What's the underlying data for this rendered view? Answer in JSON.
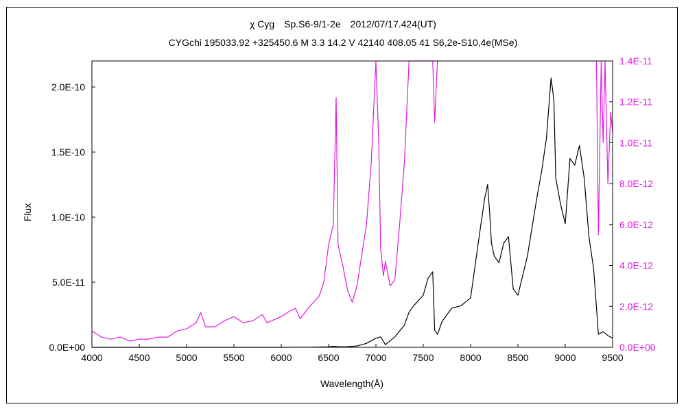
{
  "chart_data": {
    "type": "line",
    "title": "χ Cyg　Sp.S6-9/1-2e　2012/07/17.424(UT)",
    "subtitle": "CYGchi 195033.92 +325450.6 M 3.3 14.2 V 42140 408.05 41 S6,2e-S10,4e(MSe)",
    "xlabel": "Wavelength(Å)",
    "ylabel": "Flux",
    "xlim": [
      4000,
      9500
    ],
    "ylim": [
      0,
      2.2e-10
    ],
    "y2lim": [
      0,
      1.4e-11
    ],
    "x_ticks": [
      "4000",
      "4500",
      "5000",
      "5500",
      "6000",
      "6500",
      "7000",
      "7500",
      "8000",
      "8500",
      "9000",
      "9500"
    ],
    "x_tick_values": [
      4000,
      4500,
      5000,
      5500,
      6000,
      6500,
      7000,
      7500,
      8000,
      8500,
      9000,
      9500
    ],
    "y_ticks": [
      "0.0E+00",
      "5.0E-11",
      "1.0E-10",
      "1.5E-10",
      "2.0E-10"
    ],
    "y_tick_values": [
      0,
      5e-11,
      1e-10,
      1.5e-10,
      2e-10
    ],
    "y2_ticks": [
      "0.0E+00",
      "2.0E-12",
      "4.0E-12",
      "6.0E-12",
      "8.0E-12",
      "1.0E-11",
      "1.2E-11",
      "1.4E-11"
    ],
    "y2_tick_values": [
      0,
      2e-12,
      4e-12,
      6e-12,
      8e-12,
      1e-11,
      1.2e-11,
      1.4e-11
    ],
    "grid": false,
    "series": [
      {
        "axis": "left",
        "color": "#000000",
        "x": [
          4000,
          4500,
          5000,
          5500,
          6000,
          6300,
          6500,
          6550,
          6600,
          6700,
          6800,
          6900,
          7000,
          7050,
          7100,
          7200,
          7300,
          7350,
          7400,
          7500,
          7550,
          7600,
          7620,
          7650,
          7700,
          7800,
          7900,
          8000,
          8100,
          8150,
          8180,
          8200,
          8220,
          8250,
          8300,
          8350,
          8400,
          8450,
          8500,
          8600,
          8700,
          8750,
          8800,
          8850,
          8880,
          8900,
          8950,
          9000,
          9050,
          9100,
          9150,
          9200,
          9250,
          9300,
          9350,
          9400,
          9450,
          9500
        ],
        "y": [
          0,
          0,
          0,
          0,
          0,
          1e-13,
          3e-13,
          8e-13,
          4e-13,
          5e-13,
          1e-12,
          3e-12,
          7e-12,
          8e-12,
          2e-12,
          8e-12,
          1.7e-11,
          2.7e-11,
          3.2e-11,
          4e-11,
          5.3e-11,
          5.8e-11,
          1.3e-11,
          1e-11,
          2e-11,
          3e-11,
          3.2e-11,
          3.8e-11,
          9e-11,
          1.15e-10,
          1.25e-10,
          1.05e-10,
          8e-11,
          7e-11,
          6.5e-11,
          8e-11,
          8.5e-11,
          4.5e-11,
          4e-11,
          7e-11,
          1.15e-10,
          1.35e-10,
          1.6e-10,
          2.07e-10,
          1.9e-10,
          1.3e-10,
          1.1e-10,
          9.5e-11,
          1.45e-10,
          1.4e-10,
          1.55e-10,
          1.3e-10,
          8.5e-11,
          6e-11,
          1e-11,
          1.2e-11,
          9e-12,
          7e-12
        ]
      },
      {
        "axis": "right",
        "color": "#E018E0",
        "x": [
          4000,
          4100,
          4200,
          4300,
          4400,
          4500,
          4600,
          4700,
          4800,
          4900,
          5000,
          5100,
          5150,
          5200,
          5300,
          5400,
          5500,
          5600,
          5700,
          5800,
          5850,
          5900,
          6000,
          6100,
          6150,
          6200,
          6300,
          6400,
          6450,
          6500,
          6550,
          6580,
          6600,
          6650,
          6700,
          6750,
          6800,
          6900,
          6950,
          7000,
          7030,
          7050,
          7080,
          7100,
          7150,
          7200,
          7250,
          7300,
          7350,
          7400,
          7500,
          7550,
          7600,
          7620,
          7650
        ],
        "y": [
          8e-13,
          5e-13,
          4e-13,
          5e-13,
          3e-13,
          4e-13,
          4e-13,
          5e-13,
          5e-13,
          8e-13,
          9e-13,
          1.2e-12,
          1.7e-12,
          1e-12,
          1e-12,
          1.3e-12,
          1.5e-12,
          1.2e-12,
          1.3e-12,
          1.6e-12,
          1.2e-12,
          1.3e-12,
          1.5e-12,
          1.8e-12,
          1.9e-12,
          1.4e-12,
          2e-12,
          2.5e-12,
          3.2e-12,
          5e-12,
          6e-12,
          1.22e-11,
          5e-12,
          4e-12,
          2.8e-12,
          2.2e-12,
          3e-12,
          6e-12,
          9e-12,
          1.4e-11,
          1e-11,
          4.8e-12,
          3.5e-12,
          4.2e-12,
          3e-12,
          3.3e-12,
          6e-12,
          9e-12,
          1.4e-11,
          1.4e-11,
          1.4e-11,
          1.4e-11,
          1.4e-11,
          1.1e-11,
          1.4e-11
        ],
        "x2": [
          9330,
          9350,
          9380,
          9400,
          9420,
          9450,
          9480,
          9500
        ],
        "y2": [
          1.4e-11,
          5.5e-12,
          1.4e-11,
          1e-11,
          1.4e-11,
          8e-12,
          1.15e-11,
          1.05e-11
        ]
      }
    ]
  }
}
